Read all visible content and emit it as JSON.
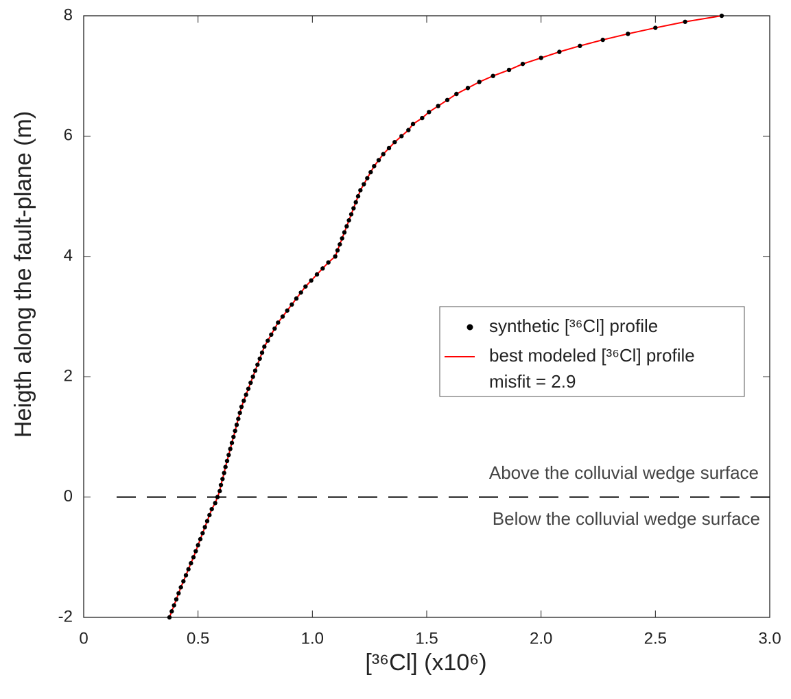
{
  "chart_data": {
    "type": "scatter",
    "xlabel": "[³⁶Cl] (x10⁶)",
    "ylabel": "Heigth along the fault-plane (m)",
    "xlim": [
      0,
      3
    ],
    "ylim": [
      -2,
      8
    ],
    "xticks": [
      0,
      0.5,
      {
        "value": 1,
        "label": "1.0"
      },
      1.5,
      {
        "value": 2,
        "label": "2.0"
      },
      2.5,
      {
        "value": 3,
        "label": "3.0"
      }
    ],
    "yticks": [
      -2,
      0,
      2,
      4,
      6,
      8
    ],
    "hline": 0,
    "annotations": [
      "Above the colluvial wedge surface",
      "Below the colluvial wedge surface",
      "misfit = 2.9"
    ],
    "series": [
      {
        "name": "synthetic [³⁶Cl] profile",
        "color": "#000000",
        "kind": "points"
      },
      {
        "name": "best modeled [³⁶Cl] profile",
        "color": "#ff0000",
        "kind": "line"
      }
    ],
    "x": [
      0.375,
      0.385,
      0.395,
      0.405,
      0.415,
      0.425,
      0.436,
      0.447,
      0.458,
      0.469,
      0.48,
      0.49,
      0.5,
      0.51,
      0.52,
      0.53,
      0.54,
      0.55,
      0.56,
      0.575,
      0.585,
      0.595,
      0.6,
      0.607,
      0.614,
      0.62,
      0.627,
      0.634,
      0.641,
      0.648,
      0.655,
      0.662,
      0.669,
      0.676,
      0.683,
      0.69,
      0.7,
      0.71,
      0.72,
      0.73,
      0.74,
      0.75,
      0.76,
      0.77,
      0.78,
      0.79,
      0.805,
      0.82,
      0.835,
      0.85,
      0.87,
      0.89,
      0.91,
      0.93,
      0.95,
      0.97,
      0.995,
      1.02,
      1.045,
      1.07,
      1.1,
      1.11,
      1.12,
      1.13,
      1.14,
      1.15,
      1.16,
      1.17,
      1.18,
      1.19,
      1.2,
      1.21,
      1.225,
      1.24,
      1.255,
      1.27,
      1.29,
      1.31,
      1.335,
      1.36,
      1.39,
      1.42,
      1.44,
      1.48,
      1.51,
      1.55,
      1.59,
      1.63,
      1.68,
      1.73,
      1.79,
      1.86,
      1.92,
      2.0,
      2.08,
      2.17,
      2.27,
      2.38,
      2.5,
      2.63,
      2.79
    ],
    "y": [
      -2,
      -1.9,
      -1.8,
      -1.7,
      -1.6,
      -1.5,
      -1.4,
      -1.3,
      -1.2,
      -1.1,
      -1,
      -0.9,
      -0.8,
      -0.7,
      -0.6,
      -0.5,
      -0.4,
      -0.3,
      -0.2,
      -0.1,
      0,
      0.1,
      0.2,
      0.3,
      0.4,
      0.5,
      0.6,
      0.7,
      0.8,
      0.9,
      1,
      1.1,
      1.2,
      1.3,
      1.4,
      1.5,
      1.6,
      1.7,
      1.8,
      1.9,
      2,
      2.1,
      2.2,
      2.3,
      2.4,
      2.5,
      2.6,
      2.7,
      2.8,
      2.9,
      3,
      3.1,
      3.2,
      3.3,
      3.4,
      3.5,
      3.6,
      3.7,
      3.8,
      3.9,
      4,
      4.1,
      4.2,
      4.3,
      4.4,
      4.5,
      4.6,
      4.7,
      4.8,
      4.9,
      5,
      5.1,
      5.2,
      5.3,
      5.4,
      5.5,
      5.6,
      5.7,
      5.8,
      5.9,
      6,
      6.1,
      6.2,
      6.3,
      6.4,
      6.5,
      6.6,
      6.7,
      6.8,
      6.9,
      7,
      7.1,
      7.2,
      7.3,
      7.4,
      7.5,
      7.6,
      7.7,
      7.8,
      7.9,
      8
    ]
  }
}
